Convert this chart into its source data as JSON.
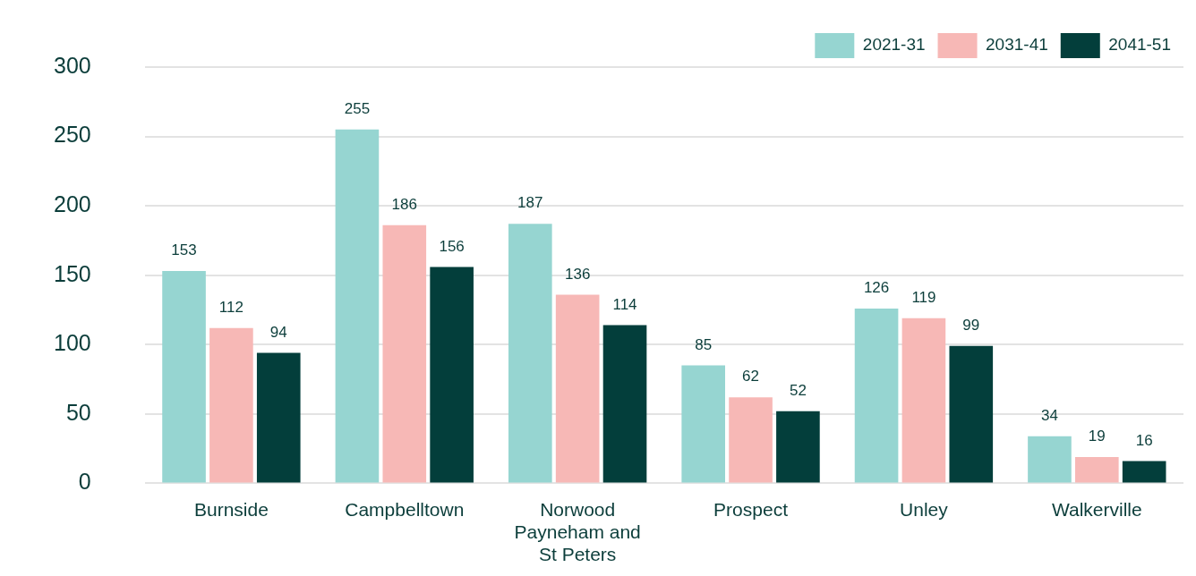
{
  "chart_data": {
    "type": "bar",
    "categories": [
      "Burnside",
      "Campbelltown",
      "Norwood Payneham and St Peters",
      "Prospect",
      "Unley",
      "Walkerville"
    ],
    "series": [
      {
        "name": "2021-31",
        "color": "#96d5d1",
        "values": [
          153,
          255,
          187,
          85,
          126,
          34
        ]
      },
      {
        "name": "2031-41",
        "color": "#f7b8b6",
        "values": [
          112,
          186,
          136,
          62,
          119,
          19
        ]
      },
      {
        "name": "2041-51",
        "color": "#033e3b",
        "values": [
          94,
          156,
          114,
          52,
          99,
          16
        ]
      }
    ],
    "ylim": [
      0,
      300
    ],
    "yticks": [
      0,
      50,
      100,
      150,
      200,
      250,
      300
    ],
    "grid": "y",
    "legend": "top right",
    "data_labels": true
  }
}
